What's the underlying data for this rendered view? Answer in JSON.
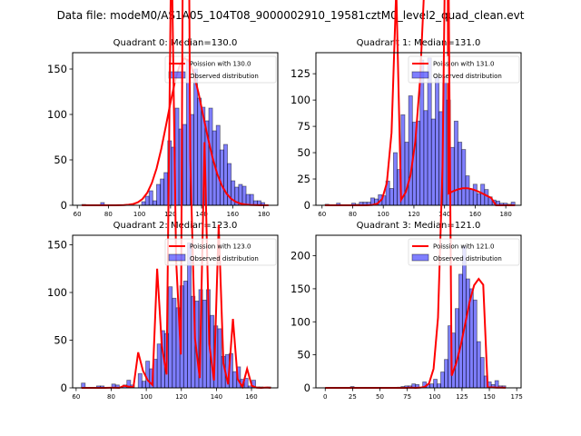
{
  "figure": {
    "suptitle": "Data file: modeM0/AS1A05_104T08_9000002910_19581cztM0_level2_quad_clean.evt",
    "bar_color": "#0000ff",
    "bar_alpha": 0.5,
    "bar_edge_color": "#000000",
    "line_color": "#ff0000"
  },
  "chart_data": [
    {
      "type": "bar",
      "title": "Quadrant 0: Median=130.0",
      "legend": [
        "Poission with 130.0",
        "Observed distribution"
      ],
      "legend_position": "top-right",
      "xlim": [
        57,
        189
      ],
      "ylim": [
        0,
        168
      ],
      "xticks": [
        60,
        80,
        100,
        120,
        140,
        160,
        180
      ],
      "yticks": [
        0,
        50,
        100,
        150
      ],
      "bins": {
        "start": 63,
        "end": 183,
        "count": 50
      },
      "values": [
        1,
        0,
        0,
        0,
        0,
        3,
        0,
        0,
        0,
        0,
        0,
        0,
        0,
        0,
        0,
        0,
        4,
        10,
        16,
        5,
        23,
        29,
        36,
        71,
        64,
        107,
        84,
        89,
        161,
        100,
        150,
        118,
        108,
        93,
        107,
        82,
        88,
        61,
        67,
        46,
        27,
        20,
        23,
        21,
        12,
        12,
        5,
        5,
        3,
        0
      ],
      "poisson_mean": 130.0,
      "poisson_peak": 162
    },
    {
      "type": "bar",
      "title": "Quadrant 1: Median=131.0",
      "legend": [
        "Poission with 131.0",
        "Observed distribution"
      ],
      "legend_position": "top-right",
      "xlim": [
        56,
        190
      ],
      "ylim": [
        0,
        145
      ],
      "xticks": [
        60,
        80,
        100,
        120,
        140,
        160,
        180
      ],
      "yticks": [
        0,
        25,
        50,
        75,
        100,
        125
      ],
      "bins": {
        "start": 62,
        "end": 186,
        "count": 50
      },
      "values": [
        1,
        0,
        0,
        2,
        0,
        0,
        0,
        2,
        1,
        3,
        3,
        3,
        7,
        6,
        10,
        9,
        23,
        16,
        50,
        34,
        86,
        60,
        104,
        79,
        80,
        138,
        90,
        140,
        82,
        122,
        89,
        122,
        100,
        55,
        80,
        60,
        53,
        28,
        15,
        20,
        11,
        20,
        15,
        8,
        5,
        4,
        2,
        2,
        1,
        3
      ],
      "poisson_mean": 131.0,
      "poisson_peak": 140
    },
    {
      "type": "bar",
      "title": "Quadrant 2: Median=123.0",
      "legend": [
        "Poission with 123.0",
        "Observed distribution"
      ],
      "legend_position": "top-right",
      "xlim": [
        58,
        175
      ],
      "ylim": [
        0,
        160
      ],
      "xticks": [
        60,
        80,
        100,
        120,
        140,
        160
      ],
      "yticks": [
        0,
        50,
        100,
        150
      ],
      "bins": {
        "start": 63,
        "end": 171,
        "count": 50
      },
      "values": [
        5,
        0,
        0,
        0,
        2,
        2,
        0,
        0,
        4,
        3,
        0,
        3,
        8,
        3,
        0,
        15,
        7,
        28,
        20,
        30,
        46,
        60,
        57,
        106,
        94,
        84,
        107,
        112,
        152,
        96,
        91,
        103,
        92,
        103,
        76,
        65,
        62,
        33,
        35,
        36,
        17,
        22,
        9,
        10,
        2,
        8,
        1,
        1,
        0,
        1
      ],
      "poisson_mean": 123.0,
      "poisson_peak": 152
    },
    {
      "type": "bar",
      "title": "Quadrant 3: Median=121.0",
      "legend": [
        "Poission with 121.0",
        "Observed distribution"
      ],
      "legend_position": "top-right",
      "xlim": [
        -8.5,
        179
      ],
      "ylim": [
        0,
        231
      ],
      "xticks": [
        0,
        25,
        50,
        75,
        100,
        125,
        150,
        175
      ],
      "yticks": [
        0,
        50,
        100,
        150,
        200
      ],
      "bins": {
        "start": 0,
        "end": 165,
        "count": 50
      },
      "values": [
        0,
        0,
        0,
        0,
        0,
        0,
        0,
        2,
        0,
        0,
        0,
        0,
        0,
        0,
        0,
        0,
        0,
        0,
        0,
        0,
        1,
        2,
        3,
        3,
        6,
        5,
        1,
        9,
        5,
        6,
        13,
        6,
        24,
        43,
        94,
        83,
        120,
        172,
        215,
        165,
        150,
        133,
        70,
        46,
        18,
        9,
        5,
        11,
        3,
        3
      ],
      "poisson_mean": 121.0,
      "poisson_peak": 221
    }
  ]
}
